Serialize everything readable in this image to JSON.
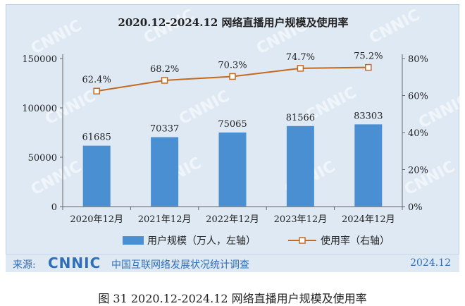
{
  "chart_data": {
    "type": "bar",
    "title": "2020.12-2024.12 网络直播用户规模及使用率",
    "categories": [
      "2020年12月",
      "2021年12月",
      "2022年12月",
      "2023年12月",
      "2024年12月"
    ],
    "series": [
      {
        "name": "用户规模（万人，左轴）",
        "type": "bar",
        "axis": "left",
        "values": [
          61685,
          70337,
          75065,
          81566,
          83303
        ],
        "labels": [
          "61685",
          "70337",
          "75065",
          "81566",
          "83303"
        ]
      },
      {
        "name": "使用率（右轴）",
        "type": "line",
        "axis": "right",
        "values": [
          62.4,
          68.2,
          70.3,
          74.7,
          75.2
        ],
        "labels": [
          "62.4%",
          "68.2%",
          "70.3%",
          "74.7%",
          "75.2%"
        ]
      }
    ],
    "left_axis": {
      "range": [
        0,
        150000
      ],
      "ticks": [
        "0",
        "50000",
        "100000",
        "150000"
      ]
    },
    "right_axis": {
      "range": [
        0,
        80
      ],
      "ticks": [
        "0%",
        "20%",
        "40%",
        "60%",
        "80%"
      ]
    },
    "legend_position": "bottom",
    "colors": {
      "bar": "#4a8fd1",
      "line": "#c46a1e"
    }
  },
  "source": {
    "label": "来源:",
    "logo_text": "CNNIC",
    "org": "中国互联网络发展状况统计调查",
    "date": "2024.12"
  },
  "caption": "图 31   2020.12-2024.12 网络直播用户规模及使用率",
  "watermark": "CNNIC"
}
